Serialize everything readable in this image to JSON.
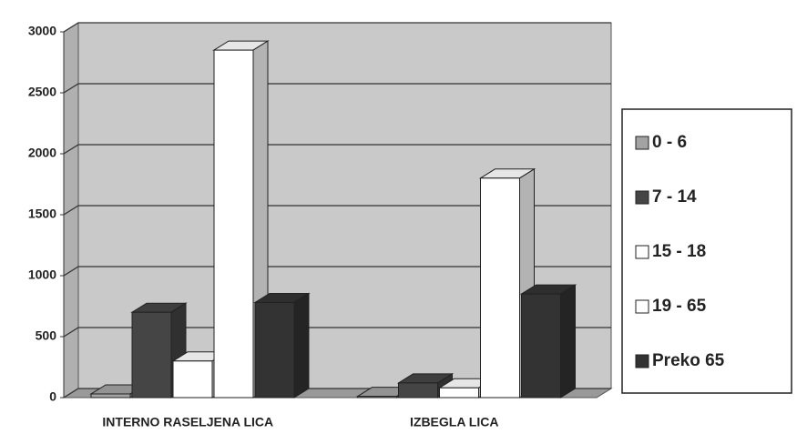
{
  "chart_data": {
    "type": "bar3d",
    "categories": [
      "INTERNO RASELJENA LICA",
      "IZBEGLA LICA"
    ],
    "series": [
      {
        "name": "0 - 6",
        "color": "#a3a3a3",
        "values": [
          30,
          10
        ]
      },
      {
        "name": "7 - 14",
        "color": "#454545",
        "values": [
          700,
          120
        ]
      },
      {
        "name": "15 - 18",
        "color": "#ffffff",
        "values": [
          300,
          80
        ]
      },
      {
        "name": "19 - 65",
        "color": "#ffffff",
        "values": [
          2850,
          1800
        ]
      },
      {
        "name": "Preko 65",
        "color": "#333333",
        "values": [
          780,
          850
        ]
      }
    ],
    "ylim": [
      0,
      3000
    ],
    "yticks": [
      0,
      500,
      1000,
      1500,
      2000,
      2500,
      3000
    ],
    "grid": true,
    "legend": "right"
  }
}
